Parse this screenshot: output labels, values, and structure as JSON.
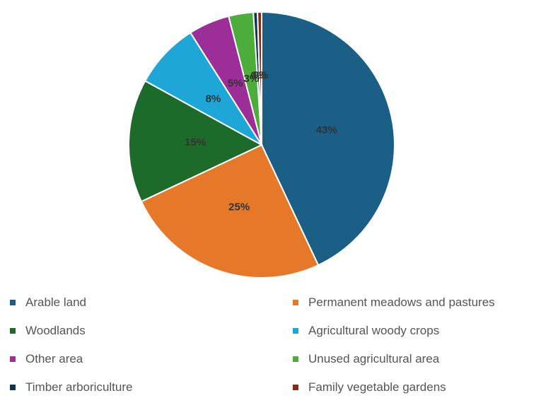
{
  "chart_data": {
    "type": "pie",
    "title": "",
    "slices": [
      {
        "label": "Arable land",
        "value": 43,
        "data_label": "43%",
        "color": "#1b5e86"
      },
      {
        "label": "Permanent meadows and pastures",
        "value": 25,
        "data_label": "25%",
        "color": "#e6782a"
      },
      {
        "label": "Woodlands",
        "value": 15,
        "data_label": "15%",
        "color": "#1d6b2a"
      },
      {
        "label": "Agricultural woody crops",
        "value": 8,
        "data_label": "8%",
        "color": "#1ea7d6"
      },
      {
        "label": "Other area",
        "value": 5,
        "data_label": "5%",
        "color": "#9b2e97"
      },
      {
        "label": "Unused agricultural area",
        "value": 3,
        "data_label": "3%",
        "color": "#4cad3a"
      },
      {
        "label": "Timber arboriculture",
        "value": 0.5,
        "data_label": "0%",
        "color": "#0d3550"
      },
      {
        "label": "Family vegetable gardens",
        "value": 0.5,
        "data_label": "0%",
        "color": "#8b2a14"
      }
    ],
    "legend_position": "bottom",
    "legend_order": [
      "Arable land",
      "Permanent meadows and pastures",
      "Woodlands",
      "Agricultural woody crops",
      "Other area",
      "Unused agricultural area",
      "Timber arboriculture",
      "Family vegetable gardens"
    ]
  }
}
